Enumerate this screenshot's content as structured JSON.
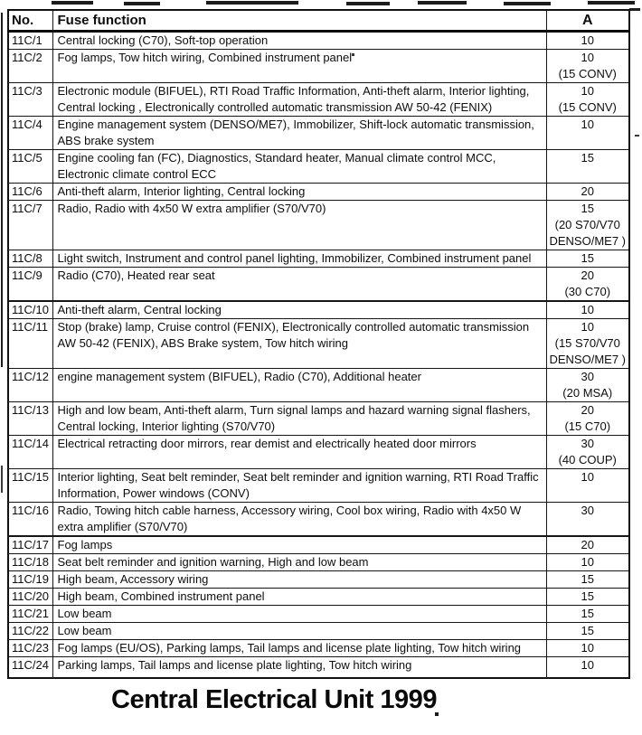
{
  "document": {
    "caption": "Central Electrical Unit 1999"
  },
  "table": {
    "headers": {
      "no": "No.",
      "function": "Fuse function",
      "amp": "A"
    },
    "rows": [
      {
        "no": "11C/1",
        "function": "Central locking (C70), Soft-top operation",
        "amp": [
          "10"
        ]
      },
      {
        "no": "11C/2",
        "function": "Fog lamps, Tow hitch wiring, Combined instrument panel",
        "amp": [
          "10",
          "(15 CONV)"
        ]
      },
      {
        "no": "11C/3",
        "function": "Electronic module (BIFUEL), RTI Road Traffic Information, Anti-theft alarm, Interior lighting, Central locking , Electronically controlled automatic transmission AW 50-42 (FENIX)",
        "amp": [
          "10",
          "(15 CONV)"
        ]
      },
      {
        "no": "11C/4",
        "function": "Engine management system (DENSO/ME7), Immobilizer, Shift-lock automatic transmission, ABS brake system",
        "amp": [
          "10"
        ]
      },
      {
        "no": "11C/5",
        "function": "Engine cooling fan (FC), Diagnostics, Standard heater, Manual climate control MCC, Electronic climate control ECC",
        "amp": [
          "15"
        ]
      },
      {
        "no": "11C/6",
        "function": "Anti-theft alarm, Interior lighting, Central locking",
        "amp": [
          "20"
        ]
      },
      {
        "no": "11C/7",
        "function": "Radio, Radio with 4x50 W extra amplifier (S70/V70)",
        "amp": [
          "15",
          "(20 S70/V70",
          "DENSO/ME7 )"
        ]
      },
      {
        "no": "11C/8",
        "function": "Light switch, Instrument and control panel lighting, Immobilizer, Combined instrument panel",
        "amp": [
          "15"
        ]
      },
      {
        "no": "11C/9",
        "function": "Radio (C70), Heated rear seat",
        "amp": [
          "20",
          "(30 C70)"
        ]
      },
      {
        "no": "11C/10",
        "function": "Anti-theft alarm, Central locking",
        "amp": [
          "10"
        ]
      },
      {
        "no": "11C/11",
        "function": "Stop (brake) lamp, Cruise control (FENIX), Electronically controlled automatic transmission AW 50-42 (FENIX), ABS Brake system, Tow hitch wiring",
        "amp": [
          "10",
          "(15 S70/V70",
          "DENSO/ME7 )"
        ]
      },
      {
        "no": "11C/12",
        "function": "engine management system (BIFUEL), Radio (C70), Additional heater",
        "amp": [
          "30",
          "(20 MSA)"
        ]
      },
      {
        "no": "11C/13",
        "function": "High and low beam, Anti-theft alarm, Turn signal lamps and hazard warning signal flashers, Central locking, Interior lighting (S70/V70)",
        "amp": [
          "20",
          "(15 C70)"
        ]
      },
      {
        "no": "11C/14",
        "function": "Electrical retracting door mirrors, rear demist and electrically heated door mirrors",
        "amp": [
          "30",
          "(40 COUP)"
        ]
      },
      {
        "no": "11C/15",
        "function": "Interior lighting, Seat belt reminder, Seat belt reminder and ignition warning, RTI Road Traffic Information, Power windows (CONV)",
        "amp": [
          "10"
        ]
      },
      {
        "no": "11C/16",
        "function": "Radio, Towing hitch cable harness, Accessory wiring, Cool box wiring, Radio with 4x50 W extra amplifier (S70/V70)",
        "amp": [
          "30"
        ]
      },
      {
        "no": "11C/17",
        "function": "Fog lamps",
        "amp": [
          "20"
        ]
      },
      {
        "no": "11C/18",
        "function": "Seat belt reminder and ignition warning, High and low beam",
        "amp": [
          "10"
        ]
      },
      {
        "no": "11C/19",
        "function": "High beam, Accessory wiring",
        "amp": [
          "15"
        ]
      },
      {
        "no": "11C/20",
        "function": "High beam, Combined instrument panel",
        "amp": [
          "15"
        ]
      },
      {
        "no": "11C/21",
        "function": "Low beam",
        "amp": [
          "15"
        ]
      },
      {
        "no": "11C/22",
        "function": "Low beam",
        "amp": [
          "15"
        ]
      },
      {
        "no": "11C/23",
        "function": "Fog lamps (EU/OS), Parking lamps, Tail lamps and license plate lighting, Tow hitch wiring",
        "amp": [
          "10"
        ]
      },
      {
        "no": "11C/24",
        "function": "Parking lamps, Tail lamps and license plate lighting, Tow hitch wiring",
        "amp": [
          "10"
        ]
      }
    ]
  }
}
